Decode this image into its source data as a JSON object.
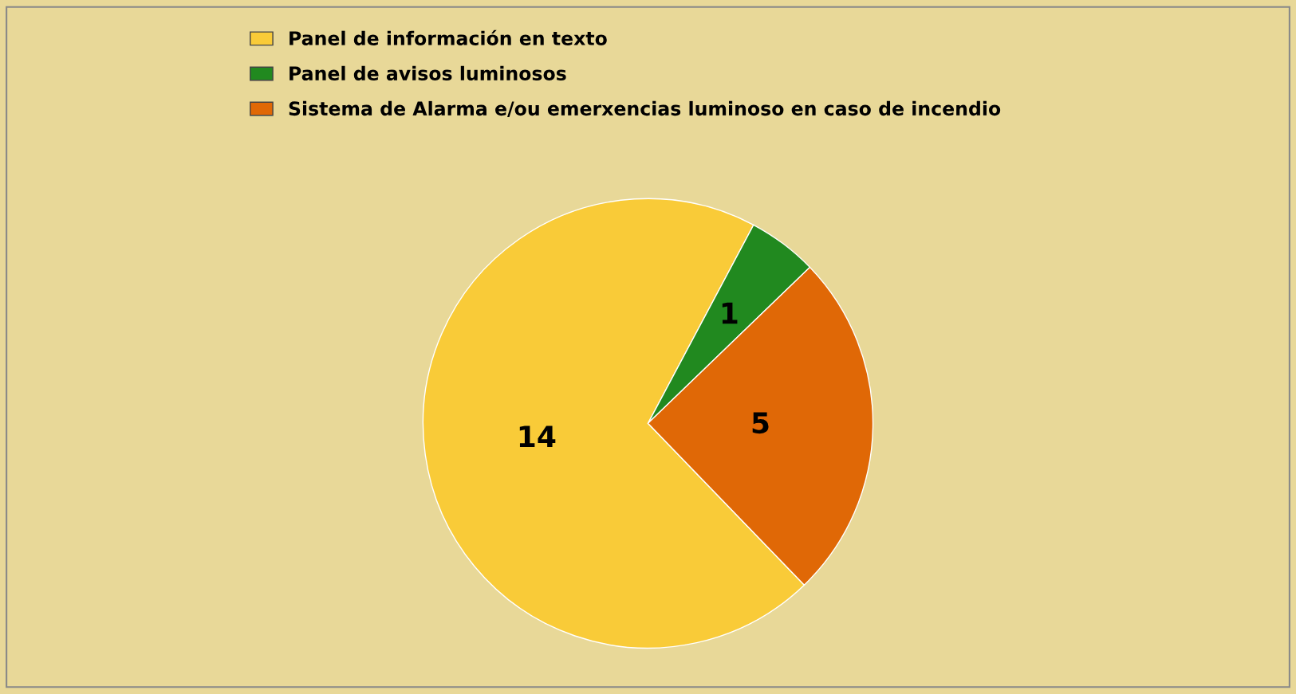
{
  "chart_data": {
    "type": "pie",
    "categories": [
      "Panel de información en texto",
      "Panel de avisos luminosos",
      "Sistema de Alarma e/ou emerxencias luminoso en caso de incendio"
    ],
    "values": [
      14,
      1,
      5
    ],
    "colors": [
      "#f9cb38",
      "#21891f",
      "#e06806"
    ],
    "data_labels": true,
    "legend": "top"
  }
}
